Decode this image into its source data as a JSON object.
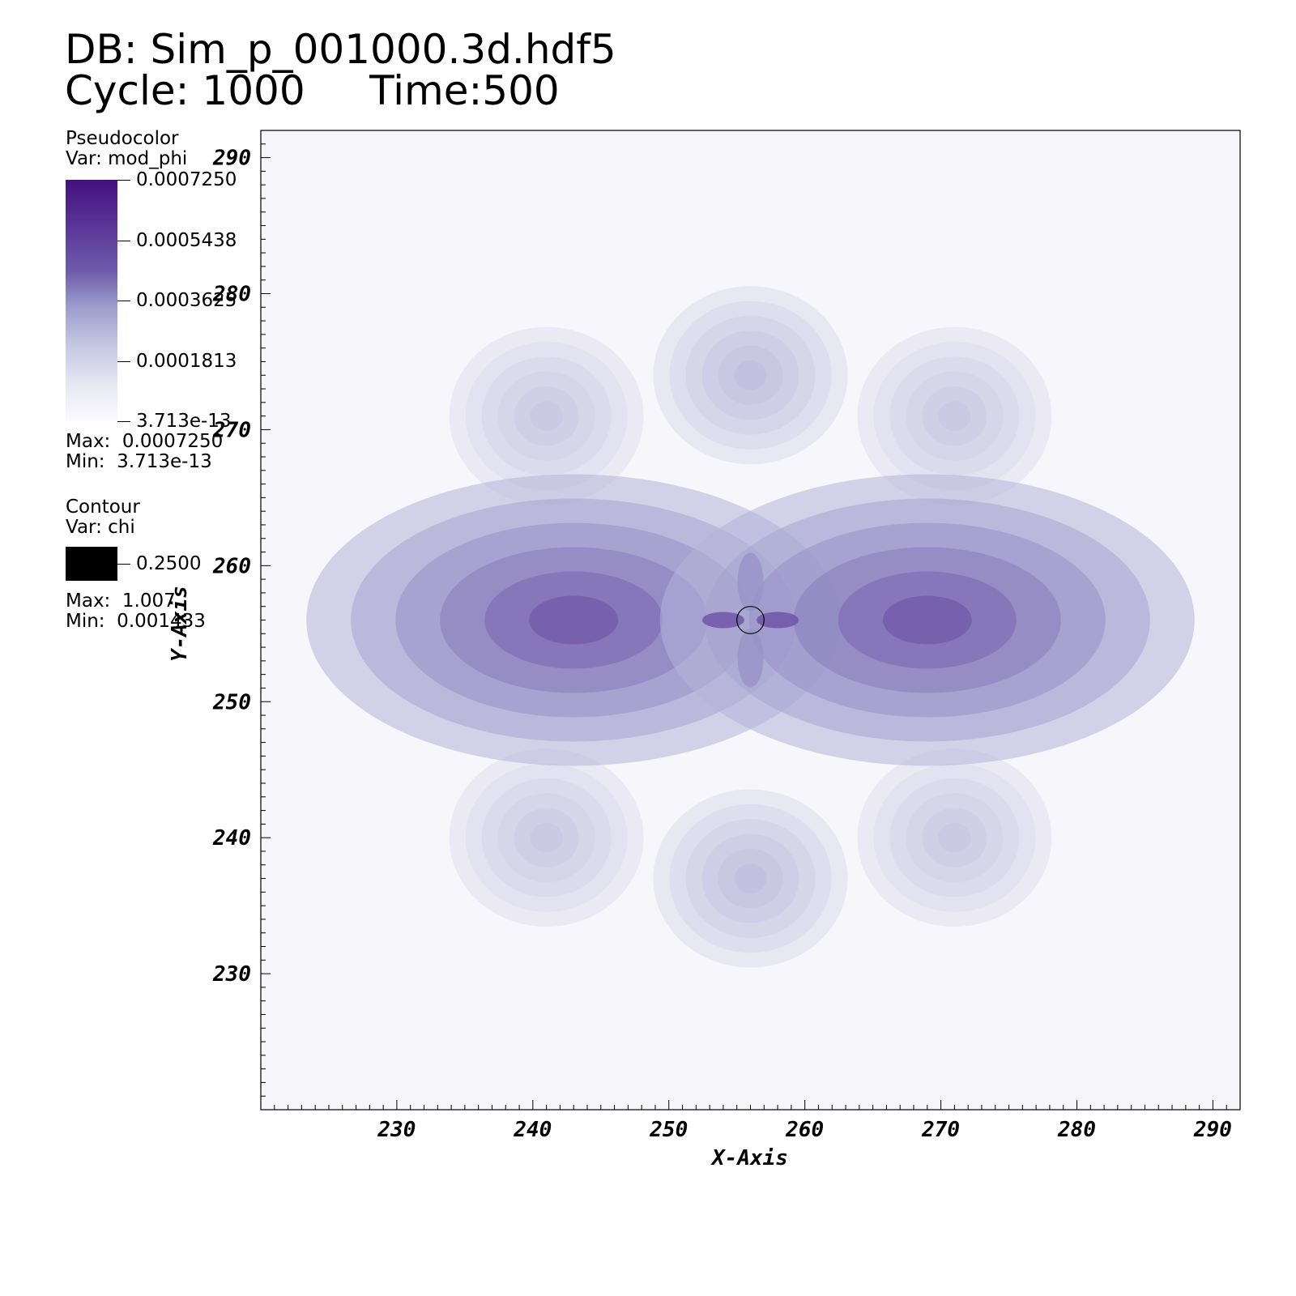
{
  "header": {
    "db_line": "DB: Sim_p_001000.3d.hdf5",
    "cycle_line": "Cycle: 1000     Time:500"
  },
  "pseudocolor_legend": {
    "title": "Pseudocolor",
    "var": "Var: mod_phi",
    "labels": [
      "0.0007250",
      "0.0005438",
      "0.0003625",
      "0.0001813",
      "3.713e-13"
    ],
    "max": "Max:  0.0007250",
    "min": "Min:  3.713e-13",
    "colors": [
      "#45107e",
      "#5a3898",
      "#6e5cab",
      "#9c9acb",
      "#c4c6e1",
      "#e6e6f2",
      "#fbfbfd"
    ]
  },
  "contour_legend": {
    "title": "Contour",
    "var": "Var: chi",
    "level": "0.2500",
    "max": "Max:  1.007",
    "min": "Min:  0.001433",
    "color": "#000000"
  },
  "chart_data": {
    "type": "heatmap",
    "variable": "mod_phi",
    "xlabel": "X-Axis",
    "ylabel": "Y-Axis",
    "xlim": [
      220,
      292
    ],
    "ylim": [
      220,
      292
    ],
    "xticks": [
      230,
      240,
      250,
      260,
      270,
      280,
      290
    ],
    "yticks": [
      230,
      240,
      250,
      260,
      270,
      280,
      290
    ],
    "value_range": [
      3.713e-13,
      0.000725
    ],
    "center": [
      256,
      256
    ],
    "peak_lobes": [
      {
        "x": 243,
        "y": 256,
        "value": 0.0006
      },
      {
        "x": 269,
        "y": 256,
        "value": 0.0006
      }
    ],
    "secondary_lobes": [
      {
        "x": 256,
        "y": 274,
        "value": 0.00024
      },
      {
        "x": 256,
        "y": 237,
        "value": 0.00024
      },
      {
        "x": 241,
        "y": 271,
        "value": 0.0002
      },
      {
        "x": 271,
        "y": 271,
        "value": 0.0002
      },
      {
        "x": 241,
        "y": 240,
        "value": 0.0002
      },
      {
        "x": 271,
        "y": 240,
        "value": 0.0002
      }
    ],
    "contour": {
      "variable": "chi",
      "level": 0.25,
      "shape": "circle",
      "center": [
        256,
        256
      ],
      "radius": 1
    }
  }
}
